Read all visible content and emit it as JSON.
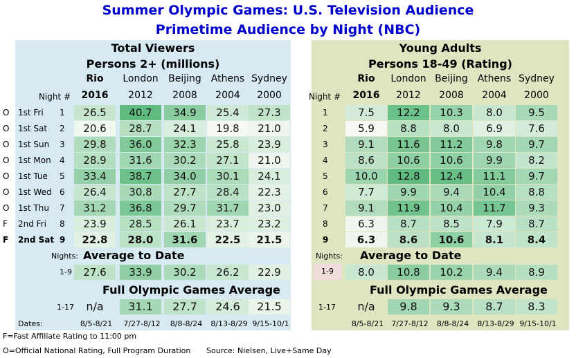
{
  "title_line1": "Summer Olympic Games: U.S. Television Audience",
  "title_line2": "Primetime Audience by Night (NBC)",
  "left": {
    "title1": "Total Viewers",
    "title2": "Persons 2+ (millions)"
  },
  "right": {
    "title1": "Young Adults",
    "title2": "Persons 18-49 (Rating)"
  },
  "night_header": "Night #",
  "nights_label": "Nights:",
  "dates_label": "Dates:",
  "section_avg": "Average to Date",
  "section_full": "Full Olympic Games Average",
  "avg_range": "1-9",
  "full_range": "1-17",
  "footnote_f": "F=Fast Affiliate Rating to 11:00 pm",
  "footnote_o": "O=Official National Rating, Full Program Duration",
  "source": "Source: Nielsen, Live+Same Day",
  "chart_data": [
    {
      "type": "table",
      "title": "Total Viewers",
      "subtitle": "Persons 2+ (millions)",
      "columns": [
        {
          "city": "Rio",
          "year": "2016"
        },
        {
          "city": "London",
          "year": "2012"
        },
        {
          "city": "Beijing",
          "year": "2008"
        },
        {
          "city": "Athens",
          "year": "2004"
        },
        {
          "city": "Sydney",
          "year": "2000"
        }
      ],
      "rows": [
        {
          "flag": "O",
          "label": "1st Fri",
          "night": "1",
          "values": [
            "26.5",
            "40.7",
            "34.9",
            "25.4",
            "27.3"
          ]
        },
        {
          "flag": "O",
          "label": "1st Sat",
          "night": "2",
          "values": [
            "20.6",
            "28.7",
            "24.1",
            "19.8",
            "21.0"
          ]
        },
        {
          "flag": "O",
          "label": "1st Sun",
          "night": "3",
          "values": [
            "29.8",
            "36.0",
            "32.3",
            "25.8",
            "23.9"
          ]
        },
        {
          "flag": "O",
          "label": "1st Mon",
          "night": "4",
          "values": [
            "28.9",
            "31.6",
            "30.2",
            "27.1",
            "21.0"
          ]
        },
        {
          "flag": "O",
          "label": "1st Tue",
          "night": "5",
          "values": [
            "33.4",
            "38.7",
            "34.0",
            "30.1",
            "24.1"
          ]
        },
        {
          "flag": "O",
          "label": "1st Wed",
          "night": "6",
          "values": [
            "26.4",
            "30.8",
            "27.7",
            "28.4",
            "22.3"
          ]
        },
        {
          "flag": "O",
          "label": "1st Thu",
          "night": "7",
          "values": [
            "31.2",
            "36.8",
            "29.7",
            "31.7",
            "23.0"
          ]
        },
        {
          "flag": "F",
          "label": "2nd Fri",
          "night": "8",
          "values": [
            "23.9",
            "28.5",
            "26.1",
            "23.7",
            "23.2"
          ]
        },
        {
          "flag": "F",
          "label": "2nd Sat",
          "night": "9",
          "values": [
            "22.8",
            "28.0",
            "31.6",
            "22.5",
            "21.5"
          ]
        }
      ],
      "average_to_date": [
        "27.6",
        "33.9",
        "30.2",
        "26.2",
        "22.9"
      ],
      "full_games_average": [
        "n/a",
        "31.1",
        "27.7",
        "24.6",
        "21.5"
      ],
      "dates": [
        "8/5-8/21",
        "7/27-8/12",
        "8/8-8/24",
        "8/13-8/29",
        "9/15-10/1"
      ]
    },
    {
      "type": "table",
      "title": "Young Adults",
      "subtitle": "Persons 18-49 (Rating)",
      "columns": [
        {
          "city": "Rio",
          "year": "2016"
        },
        {
          "city": "London",
          "year": "2012"
        },
        {
          "city": "Beijing",
          "year": "2008"
        },
        {
          "city": "Athens",
          "year": "2004"
        },
        {
          "city": "Sydney",
          "year": "2000"
        }
      ],
      "rows": [
        {
          "night": "1",
          "values": [
            "7.5",
            "12.2",
            "10.3",
            "8.0",
            "9.5"
          ]
        },
        {
          "night": "2",
          "values": [
            "5.9",
            "8.8",
            "8.0",
            "6.9",
            "7.6"
          ]
        },
        {
          "night": "3",
          "values": [
            "9.1",
            "11.6",
            "11.2",
            "9.8",
            "9.7"
          ]
        },
        {
          "night": "4",
          "values": [
            "8.6",
            "10.6",
            "10.6",
            "9.9",
            "8.2"
          ]
        },
        {
          "night": "5",
          "values": [
            "10.0",
            "12.8",
            "12.4",
            "11.1",
            "9.7"
          ]
        },
        {
          "night": "6",
          "values": [
            "7.7",
            "9.9",
            "9.4",
            "10.4",
            "8.8"
          ]
        },
        {
          "night": "7",
          "values": [
            "9.1",
            "11.9",
            "10.4",
            "11.7",
            "9.3"
          ]
        },
        {
          "night": "8",
          "values": [
            "6.3",
            "8.7",
            "8.5",
            "7.9",
            "8.7"
          ]
        },
        {
          "night": "9",
          "values": [
            "6.3",
            "8.6",
            "10.6",
            "8.1",
            "8.4"
          ]
        }
      ],
      "average_to_date": [
        "8.0",
        "10.8",
        "10.2",
        "9.4",
        "8.9"
      ],
      "full_games_average": [
        "n/a",
        "9.8",
        "9.3",
        "8.7",
        "8.3"
      ],
      "dates": [
        "8/5-8/21",
        "7/27-8/12",
        "8/8-8/24",
        "8/13-8/29",
        "9/15-10/1"
      ]
    }
  ],
  "colors": {
    "title": "#0000cc",
    "left_panel": "#d7e9f1",
    "right_panel": "#dde6c0",
    "scale_low": "#f7faf4",
    "scale_high": "#5fbb7f"
  }
}
